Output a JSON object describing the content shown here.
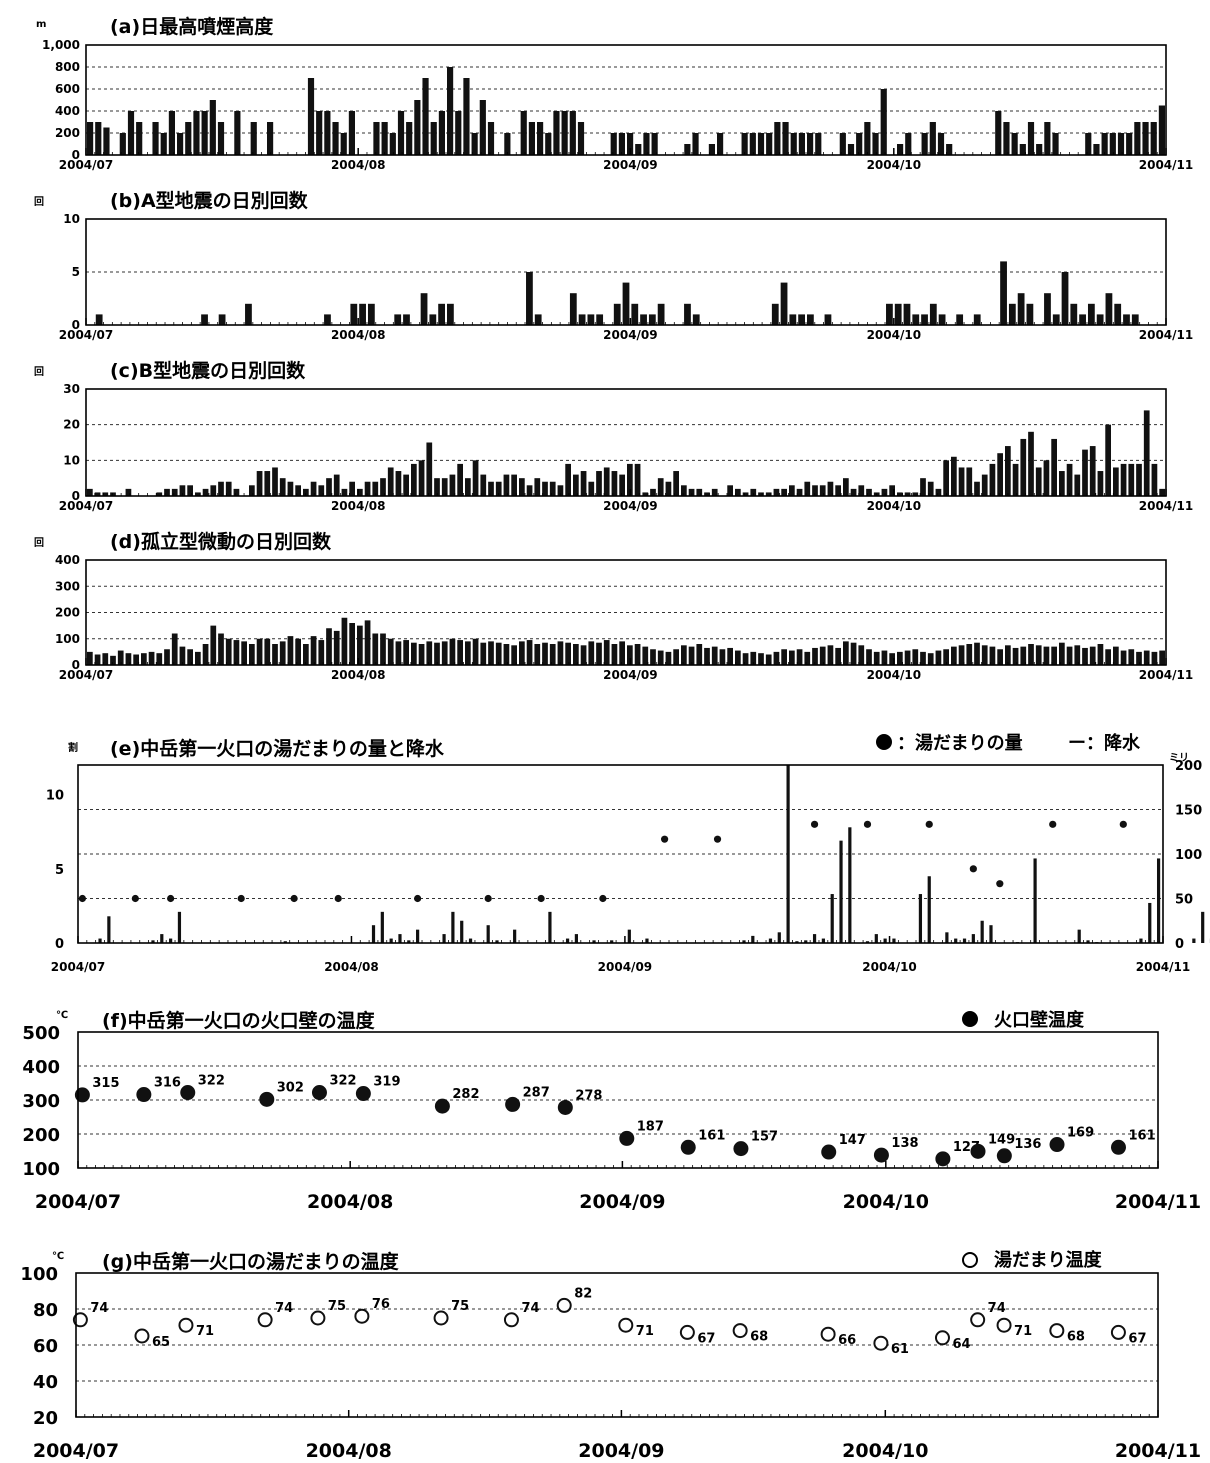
{
  "chart_data": [
    {
      "id": "a",
      "type": "bar",
      "title": "(a)日最高噴煙高度",
      "unit": "m",
      "ylim": [
        0,
        1000
      ],
      "yticks": [
        "0",
        "200",
        "400",
        "600",
        "800",
        "1,000"
      ],
      "xticks": [
        "2004/07",
        "2004/08",
        "2004/09",
        "2004/10",
        "2004/11"
      ],
      "grid": true,
      "start": "2004-07-01",
      "values": [
        300,
        300,
        250,
        0,
        200,
        400,
        300,
        0,
        300,
        200,
        400,
        200,
        300,
        400,
        400,
        500,
        300,
        0,
        400,
        0,
        300,
        0,
        300,
        0,
        0,
        0,
        0,
        700,
        400,
        400,
        300,
        200,
        400,
        0,
        0,
        300,
        300,
        200,
        400,
        300,
        500,
        700,
        300,
        400,
        800,
        400,
        700,
        200,
        500,
        300,
        0,
        200,
        0,
        400,
        300,
        300,
        200,
        400,
        400,
        400,
        300,
        0,
        0,
        0,
        200,
        200,
        200,
        100,
        200,
        200,
        0,
        0,
        0,
        100,
        200,
        0,
        100,
        200,
        0,
        0,
        200,
        200,
        200,
        200,
        300,
        300,
        200,
        200,
        200,
        200,
        0,
        0,
        200,
        100,
        200,
        300,
        200,
        600,
        0,
        100,
        200,
        0,
        200,
        300,
        200,
        100,
        0,
        0,
        0,
        0,
        0,
        400,
        300,
        200,
        100,
        300,
        100,
        300,
        200,
        0,
        0,
        0,
        200,
        100,
        200,
        200,
        200,
        200,
        300,
        300,
        300,
        450
      ]
    },
    {
      "id": "b",
      "type": "bar",
      "title": "(b)A型地震の日別回数",
      "unit": "回",
      "ylim": [
        0,
        10
      ],
      "yticks": [
        "0",
        "5",
        "10"
      ],
      "xticks": [
        "2004/07",
        "2004/08",
        "2004/09",
        "2004/10",
        "2004/11"
      ],
      "grid": true,
      "start": "2004-07-01",
      "values": [
        0,
        1,
        0,
        0,
        0,
        0,
        0,
        0,
        0,
        0,
        0,
        0,
        0,
        1,
        0,
        1,
        0,
        0,
        2,
        0,
        0,
        0,
        0,
        0,
        0,
        0,
        0,
        0,
        0,
        0,
        0,
        0,
        0,
        0,
        0,
        0,
        0,
        0,
        0,
        0,
        0,
        0,
        0,
        0,
        0,
        0,
        0,
        0,
        0,
        0,
        0,
        0,
        0,
        0,
        0,
        0,
        0,
        0,
        0,
        0,
        0,
        0,
        0,
        0,
        0,
        0,
        0,
        0,
        0,
        0,
        0,
        0,
        0,
        0,
        0,
        0,
        0,
        0,
        0,
        0,
        0,
        0,
        0,
        0,
        0,
        0,
        0,
        0,
        0,
        0,
        0,
        0,
        0,
        0,
        0,
        0,
        0,
        0,
        0,
        0,
        0,
        0,
        0,
        0,
        0,
        0,
        0,
        0,
        0,
        0,
        0,
        0,
        0,
        0,
        0,
        0,
        0,
        0,
        0,
        0,
        0,
        0,
        0,
        0,
        0,
        0,
        0,
        0,
        0,
        0,
        0,
        0,
        0
      ],
      "events": [
        [
          1,
          1
        ],
        [
          13,
          1
        ],
        [
          15,
          1
        ],
        [
          18,
          2
        ],
        [
          27,
          1
        ],
        [
          30,
          2
        ],
        [
          31,
          2
        ],
        [
          32,
          2
        ],
        [
          35,
          1
        ],
        [
          36,
          1
        ],
        [
          38,
          3
        ],
        [
          39,
          1
        ],
        [
          40,
          2
        ],
        [
          41,
          2
        ],
        [
          50,
          5
        ],
        [
          51,
          1
        ],
        [
          55,
          3
        ],
        [
          56,
          1
        ],
        [
          57,
          1
        ],
        [
          58,
          1
        ],
        [
          60,
          2
        ],
        [
          61,
          4
        ],
        [
          62,
          2
        ],
        [
          63,
          1
        ],
        [
          64,
          1
        ],
        [
          65,
          2
        ],
        [
          68,
          2
        ],
        [
          69,
          1
        ],
        [
          78,
          2
        ],
        [
          79,
          4
        ],
        [
          80,
          1
        ],
        [
          81,
          1
        ],
        [
          82,
          1
        ],
        [
          84,
          1
        ],
        [
          91,
          2
        ],
        [
          92,
          2
        ],
        [
          93,
          2
        ],
        [
          94,
          1
        ],
        [
          95,
          1
        ],
        [
          96,
          2
        ],
        [
          97,
          1
        ],
        [
          99,
          1
        ],
        [
          101,
          1
        ],
        [
          104,
          6
        ],
        [
          105,
          2
        ],
        [
          106,
          3
        ],
        [
          107,
          2
        ],
        [
          109,
          3
        ],
        [
          110,
          1
        ],
        [
          111,
          5
        ],
        [
          112,
          2
        ],
        [
          113,
          1
        ],
        [
          114,
          2
        ],
        [
          115,
          1
        ],
        [
          116,
          3
        ],
        [
          117,
          2
        ],
        [
          118,
          1
        ],
        [
          119,
          1
        ]
      ]
    },
    {
      "id": "c",
      "type": "bar",
      "title": "(c)B型地震の日別回数",
      "unit": "回",
      "ylim": [
        0,
        30
      ],
      "yticks": [
        "0",
        "10",
        "20",
        "30"
      ],
      "xticks": [
        "2004/07",
        "2004/08",
        "2004/09",
        "2004/10",
        "2004/11"
      ],
      "grid": true,
      "start": "2004-07-01",
      "values": [
        2,
        1,
        1,
        1,
        0,
        2,
        0,
        0,
        0,
        1,
        2,
        2,
        3,
        3,
        1,
        2,
        3,
        4,
        4,
        2,
        0,
        3,
        7,
        7,
        8,
        5,
        4,
        3,
        2,
        4,
        3,
        5,
        6,
        2,
        4,
        2,
        4,
        4,
        5,
        8,
        7,
        6,
        9,
        10,
        15,
        5,
        5,
        6,
        9,
        5,
        10,
        6,
        4,
        4,
        6,
        6,
        5,
        3,
        5,
        4,
        4,
        3,
        9,
        6,
        7,
        4,
        7,
        8,
        7,
        6,
        9,
        9,
        1,
        2,
        5,
        4,
        7,
        3,
        2,
        2,
        1,
        2,
        0,
        3,
        2,
        1,
        2,
        1,
        1,
        2,
        2,
        3,
        2,
        4,
        3,
        3,
        4,
        3,
        5,
        2,
        3,
        2,
        1,
        2,
        3,
        1,
        1,
        1,
        5,
        4,
        2,
        10,
        11,
        8,
        8,
        4,
        6,
        9,
        12,
        14,
        9,
        16,
        18,
        8,
        10,
        16,
        7,
        9,
        6,
        13,
        14,
        7,
        20,
        8,
        9,
        9,
        9,
        24,
        9,
        2
      ]
    },
    {
      "id": "d",
      "type": "bar",
      "title": "(d)孤立型微動の日別回数",
      "unit": "回",
      "ylim": [
        0,
        400
      ],
      "yticks": [
        "0",
        "100",
        "200",
        "300",
        "400"
      ],
      "xticks": [
        "2004/07",
        "2004/08",
        "2004/09",
        "2004/10",
        "2004/11"
      ],
      "grid": true,
      "start": "2004-07-01",
      "values": [
        50,
        40,
        45,
        35,
        55,
        45,
        40,
        45,
        50,
        45,
        60,
        120,
        70,
        60,
        50,
        80,
        150,
        120,
        100,
        95,
        90,
        80,
        100,
        100,
        80,
        90,
        110,
        100,
        80,
        110,
        95,
        140,
        130,
        180,
        160,
        150,
        170,
        120,
        120,
        100,
        90,
        95,
        85,
        80,
        90,
        85,
        90,
        100,
        95,
        90,
        100,
        85,
        90,
        85,
        80,
        75,
        90,
        95,
        80,
        85,
        80,
        90,
        85,
        80,
        75,
        90,
        85,
        95,
        80,
        90,
        75,
        80,
        70,
        60,
        55,
        50,
        60,
        75,
        70,
        80,
        65,
        70,
        60,
        65,
        55,
        45,
        50,
        45,
        40,
        50,
        60,
        55,
        60,
        50,
        65,
        70,
        75,
        65,
        90,
        85,
        75,
        60,
        50,
        55,
        45,
        50,
        55,
        60,
        50,
        45,
        55,
        60,
        70,
        75,
        80,
        85,
        75,
        70,
        60,
        75,
        65,
        70,
        80,
        75,
        70,
        70,
        85,
        70,
        75,
        65,
        70,
        80,
        60,
        70,
        55,
        60,
        50,
        55,
        50,
        55
      ]
    },
    {
      "id": "e",
      "type": "bar",
      "title": "(e)中岳第一火口の湯だまりの量と降水",
      "left_unit": "割",
      "right_unit": "ミリ",
      "legend": [
        "●：湯だまりの量",
        "ー：降水"
      ],
      "ylim_left": [
        0,
        12
      ],
      "ylim_right": [
        0,
        200
      ],
      "yticks_left": [
        "0",
        "5",
        "10"
      ],
      "yticks_right": [
        "0",
        "50",
        "100",
        "150",
        "200"
      ],
      "xticks": [
        "2004/07",
        "2004/08",
        "2004/09",
        "2004/10",
        "2004/11"
      ],
      "grid": true,
      "start": "2004-07-01",
      "rain_mm": [
        [
          2,
          5
        ],
        [
          3,
          30
        ],
        [
          8,
          3
        ],
        [
          9,
          10
        ],
        [
          10,
          5
        ],
        [
          11,
          35
        ],
        [
          23,
          2
        ],
        [
          33,
          20
        ],
        [
          34,
          35
        ],
        [
          35,
          5
        ],
        [
          36,
          10
        ],
        [
          37,
          3
        ],
        [
          38,
          15
        ],
        [
          41,
          10
        ],
        [
          42,
          35
        ],
        [
          43,
          25
        ],
        [
          44,
          5
        ],
        [
          46,
          20
        ],
        [
          47,
          3
        ],
        [
          49,
          15
        ],
        [
          53,
          35
        ],
        [
          55,
          5
        ],
        [
          56,
          10
        ],
        [
          58,
          3
        ],
        [
          60,
          3
        ],
        [
          62,
          15
        ],
        [
          64,
          5
        ],
        [
          75,
          3
        ],
        [
          76,
          8
        ],
        [
          78,
          5
        ],
        [
          79,
          12
        ],
        [
          80,
          200
        ],
        [
          81,
          2
        ],
        [
          82,
          3
        ],
        [
          83,
          10
        ],
        [
          84,
          5
        ],
        [
          85,
          55
        ],
        [
          86,
          115
        ],
        [
          87,
          130
        ],
        [
          89,
          2
        ],
        [
          90,
          10
        ],
        [
          91,
          5
        ],
        [
          92,
          5
        ],
        [
          95,
          55
        ],
        [
          96,
          75
        ],
        [
          98,
          12
        ],
        [
          99,
          5
        ],
        [
          100,
          5
        ],
        [
          101,
          10
        ],
        [
          102,
          25
        ],
        [
          103,
          20
        ],
        [
          106,
          1
        ],
        [
          108,
          95
        ],
        [
          113,
          15
        ],
        [
          114,
          3
        ],
        [
          115,
          1
        ],
        [
          120,
          5
        ],
        [
          121,
          45
        ],
        [
          122,
          95
        ],
        [
          126,
          5
        ],
        [
          127,
          35
        ],
        [
          128,
          5
        ],
        [
          129,
          10
        ],
        [
          130,
          3
        ]
      ],
      "pond_level": [
        [
          0,
          3
        ],
        [
          6,
          3
        ],
        [
          10,
          3
        ],
        [
          18,
          3
        ],
        [
          24,
          3
        ],
        [
          29,
          3
        ],
        [
          38,
          3
        ],
        [
          46,
          3
        ],
        [
          52,
          3
        ],
        [
          59,
          3
        ],
        [
          66,
          7
        ],
        [
          72,
          7
        ],
        [
          83,
          8
        ],
        [
          89,
          8
        ],
        [
          96,
          8
        ],
        [
          101,
          5
        ],
        [
          104,
          4
        ],
        [
          110,
          8
        ],
        [
          118,
          8
        ]
      ]
    },
    {
      "id": "f",
      "type": "scatter",
      "title": "(f)中岳第一火口の火口壁の温度",
      "unit": "℃",
      "legend": "火口壁温度",
      "ylim": [
        100,
        500
      ],
      "yticks": [
        "100",
        "200",
        "300",
        "400",
        "500"
      ],
      "xticks": [
        "2004/07",
        "2004/08",
        "2004/09",
        "2004/10",
        "2004/11"
      ],
      "grid": true,
      "start": "2004-07-01",
      "points": [
        [
          0,
          315
        ],
        [
          7,
          316
        ],
        [
          12,
          322
        ],
        [
          21,
          302
        ],
        [
          27,
          322
        ],
        [
          32,
          319
        ],
        [
          41,
          282
        ],
        [
          49,
          287
        ],
        [
          55,
          278
        ],
        [
          62,
          187
        ],
        [
          69,
          161
        ],
        [
          75,
          157
        ],
        [
          85,
          147
        ],
        [
          91,
          138
        ],
        [
          98,
          127
        ],
        [
          102,
          149
        ],
        [
          105,
          136
        ],
        [
          111,
          169
        ],
        [
          118,
          161
        ]
      ]
    },
    {
      "id": "g",
      "type": "scatter",
      "title": "(g)中岳第一火口の湯だまりの温度",
      "unit": "℃",
      "legend": "湯だまり温度",
      "ylim": [
        20,
        100
      ],
      "yticks": [
        "20",
        "40",
        "60",
        "80",
        "100"
      ],
      "xticks": [
        "2004/07",
        "2004/08",
        "2004/09",
        "2004/10",
        "2004/11"
      ],
      "grid": true,
      "start": "2004-07-01",
      "points": [
        [
          0,
          74
        ],
        [
          7,
          65
        ],
        [
          12,
          71
        ],
        [
          21,
          74
        ],
        [
          27,
          75
        ],
        [
          32,
          76
        ],
        [
          41,
          75
        ],
        [
          49,
          74
        ],
        [
          55,
          82
        ],
        [
          62,
          71
        ],
        [
          69,
          67
        ],
        [
          75,
          68
        ],
        [
          85,
          66
        ],
        [
          91,
          61
        ],
        [
          98,
          64
        ],
        [
          102,
          74
        ],
        [
          105,
          71
        ],
        [
          111,
          68
        ],
        [
          118,
          67
        ]
      ]
    }
  ]
}
